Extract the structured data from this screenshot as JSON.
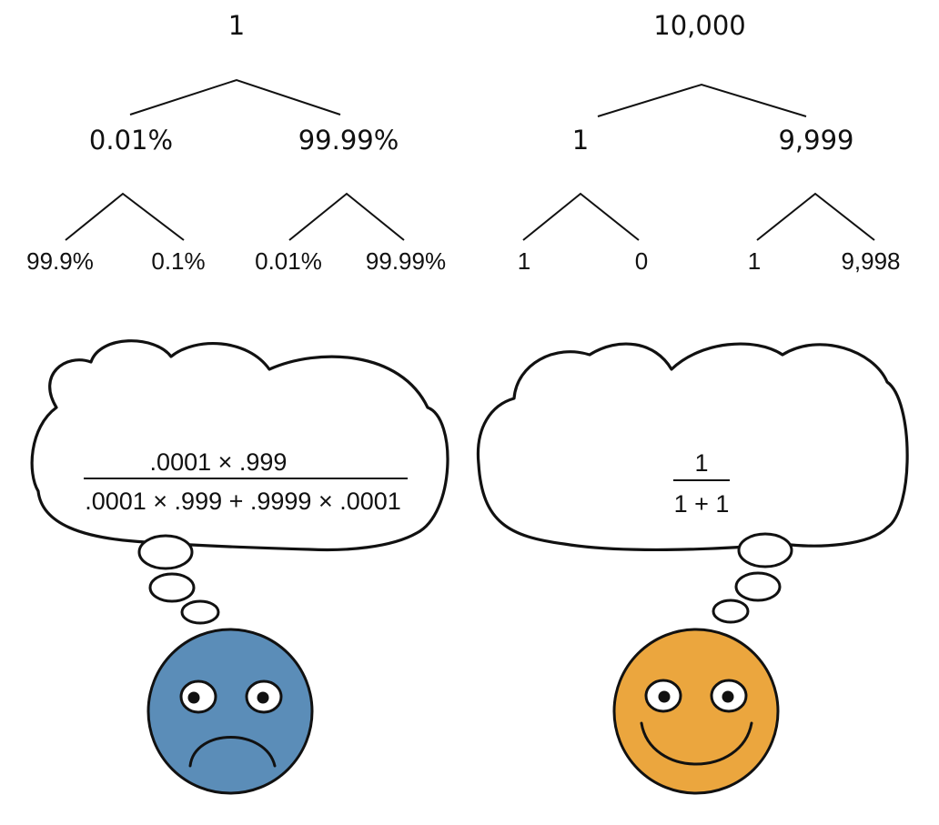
{
  "left_tree": {
    "root": "1",
    "level1": [
      "0.01%",
      "99.99%"
    ],
    "leaves": [
      "99.9%",
      "0.1%",
      "0.01%",
      "99.99%"
    ]
  },
  "right_tree": {
    "root": "10,000",
    "level1": [
      "1",
      "9,999"
    ],
    "leaves": [
      "1",
      "0",
      "1",
      "9,998"
    ]
  },
  "left_thought": {
    "numerator": ".0001 × .999",
    "denominator": ".0001 × .999 + .9999 × .0001"
  },
  "right_thought": {
    "numerator": "1",
    "denominator": "1 + 1"
  },
  "faces": {
    "sad_color": "#5b8db8",
    "happy_color": "#eba63e"
  }
}
